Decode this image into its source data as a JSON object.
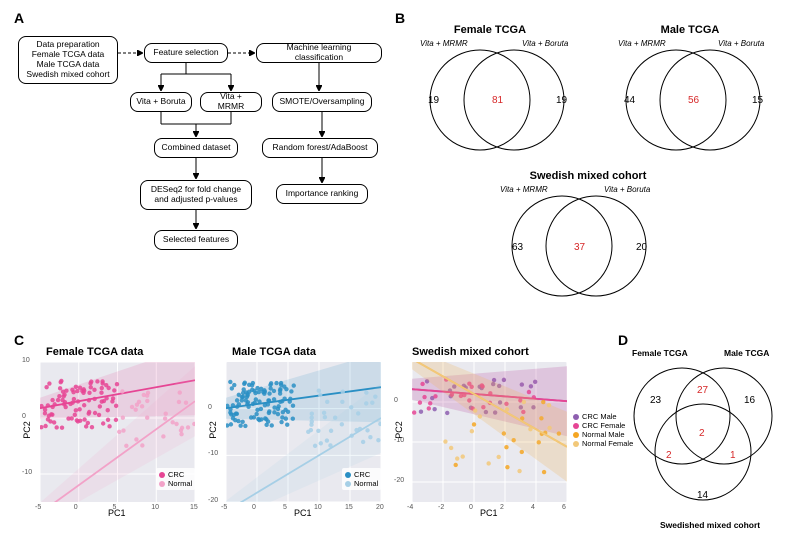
{
  "panels": {
    "A": "A",
    "B": "B",
    "C": "C",
    "D": "D"
  },
  "flow": {
    "n1": "Data preparation\nFemale TCGA data\nMale TCGA data\nSwedish mixed cohort",
    "n2": "Feature selection",
    "n3": "Machine learning classification",
    "n4": "Vita + Boruta",
    "n5": "Vita + MRMR",
    "n6": "SMOTE/Oversampling",
    "n7": "Combined dataset",
    "n8": "Random forest/AdaBoost",
    "n9": "DESeq2 for fold change\nand adjusted p-values",
    "n10": "Importance ranking",
    "n11": "Selected features"
  },
  "vennB": {
    "female": {
      "title": "Female TCGA",
      "left_label": "Vita + MRMR",
      "right_label": "Vita + Boruta",
      "left_only": 19,
      "overlap": 81,
      "right_only": 19
    },
    "male": {
      "title": "Male TCGA",
      "left_label": "Vita + MRMR",
      "right_label": "Vita + Boruta",
      "left_only": 44,
      "overlap": 56,
      "right_only": 15
    },
    "swedish": {
      "title": "Swedish mixed cohort",
      "left_label": "Vita + MRMR",
      "right_label": "Vita + Boruta",
      "left_only": 63,
      "overlap": 37,
      "right_only": 20
    }
  },
  "scatterC": {
    "female": {
      "title": "Female TCGA data",
      "xlabel": "PC1",
      "ylabel": "PC2",
      "xlim": [
        -5,
        15
      ],
      "xticks": [
        -5,
        0,
        5,
        10,
        15
      ],
      "ylim": [
        -15,
        10
      ],
      "yticks": [
        -10,
        0,
        10
      ],
      "bg": "#e9e9ef",
      "grid": "#ffffff",
      "series": [
        {
          "name": "CRC",
          "color": "#e64594",
          "line_slope": 0.25,
          "line_intercept": 3,
          "band_opacity": 0.15,
          "n": 90,
          "spread_x": [
            -5,
            5
          ],
          "spread_y": [
            -2,
            7
          ]
        },
        {
          "name": "Normal",
          "color": "#f2a2c8",
          "line_slope": 1.0,
          "line_intercept": -12,
          "band_opacity": 0.15,
          "n": 30,
          "spread_x": [
            5,
            15
          ],
          "spread_y": [
            -5,
            5
          ]
        }
      ]
    },
    "male": {
      "title": "Male TCGA data",
      "xlabel": "PC1",
      "ylabel": "PC2",
      "xlim": [
        -5,
        20
      ],
      "xticks": [
        -5,
        0,
        5,
        10,
        15,
        20
      ],
      "ylim": [
        -20,
        10
      ],
      "yticks": [
        -20,
        -10,
        0
      ],
      "bg": "#e9e9ef",
      "grid": "#ffffff",
      "series": [
        {
          "name": "CRC",
          "color": "#2a8fc4",
          "line_slope": 0.18,
          "line_intercept": 1,
          "band_opacity": 0.15,
          "n": 110,
          "spread_x": [
            -5,
            6
          ],
          "spread_y": [
            -4,
            6
          ]
        },
        {
          "name": "Normal",
          "color": "#a6cfe6",
          "line_slope": 0.8,
          "line_intercept": -18,
          "band_opacity": 0.15,
          "n": 35,
          "spread_x": [
            8,
            20
          ],
          "spread_y": [
            -8,
            4
          ]
        }
      ]
    },
    "swedish": {
      "title": "Swedish mixed cohort",
      "xlabel": "PC1",
      "ylabel": "PC2",
      "xlim": [
        -4,
        6
      ],
      "xticks": [
        -4,
        -2,
        0,
        2,
        4,
        6
      ],
      "ylim": [
        -25,
        10
      ],
      "yticks": [
        -20,
        -10,
        0
      ],
      "bg": "#e9e9ef",
      "grid": "#ffffff",
      "series": [
        {
          "name": "CRC Male",
          "color": "#8e5fb0",
          "line_slope": -0.3,
          "line_intercept": 2,
          "band_opacity": 0.12,
          "n": 25,
          "spread_x": [
            -4,
            4
          ],
          "spread_y": [
            -3,
            6
          ]
        },
        {
          "name": "CRC Female",
          "color": "#e64594",
          "line_slope": -0.3,
          "line_intercept": 2,
          "band_opacity": 0.12,
          "n": 25,
          "spread_x": [
            -4,
            4
          ],
          "spread_y": [
            -3,
            6
          ]
        },
        {
          "name": "Normal Male",
          "color": "#f5a623",
          "line_slope": -2.2,
          "line_intercept": 2,
          "band_opacity": 0.12,
          "n": 15,
          "spread_x": [
            -2,
            6
          ],
          "spread_y": [
            -20,
            2
          ]
        },
        {
          "name": "Normal Female",
          "color": "#f2c879",
          "line_slope": -2.2,
          "line_intercept": 2,
          "band_opacity": 0.12,
          "n": 15,
          "spread_x": [
            -2,
            6
          ],
          "spread_y": [
            -20,
            2
          ]
        }
      ]
    }
  },
  "vennD": {
    "labels": {
      "a": "Female TCGA",
      "b": "Male TCGA",
      "c": "Swedished mixed cohort"
    },
    "regions": {
      "a_only": 23,
      "b_only": 16,
      "c_only": 14,
      "ab": 27,
      "ac": 2,
      "bc": 1,
      "abc": 2
    }
  },
  "colors": {
    "black": "#000000",
    "red": "#d62728"
  }
}
